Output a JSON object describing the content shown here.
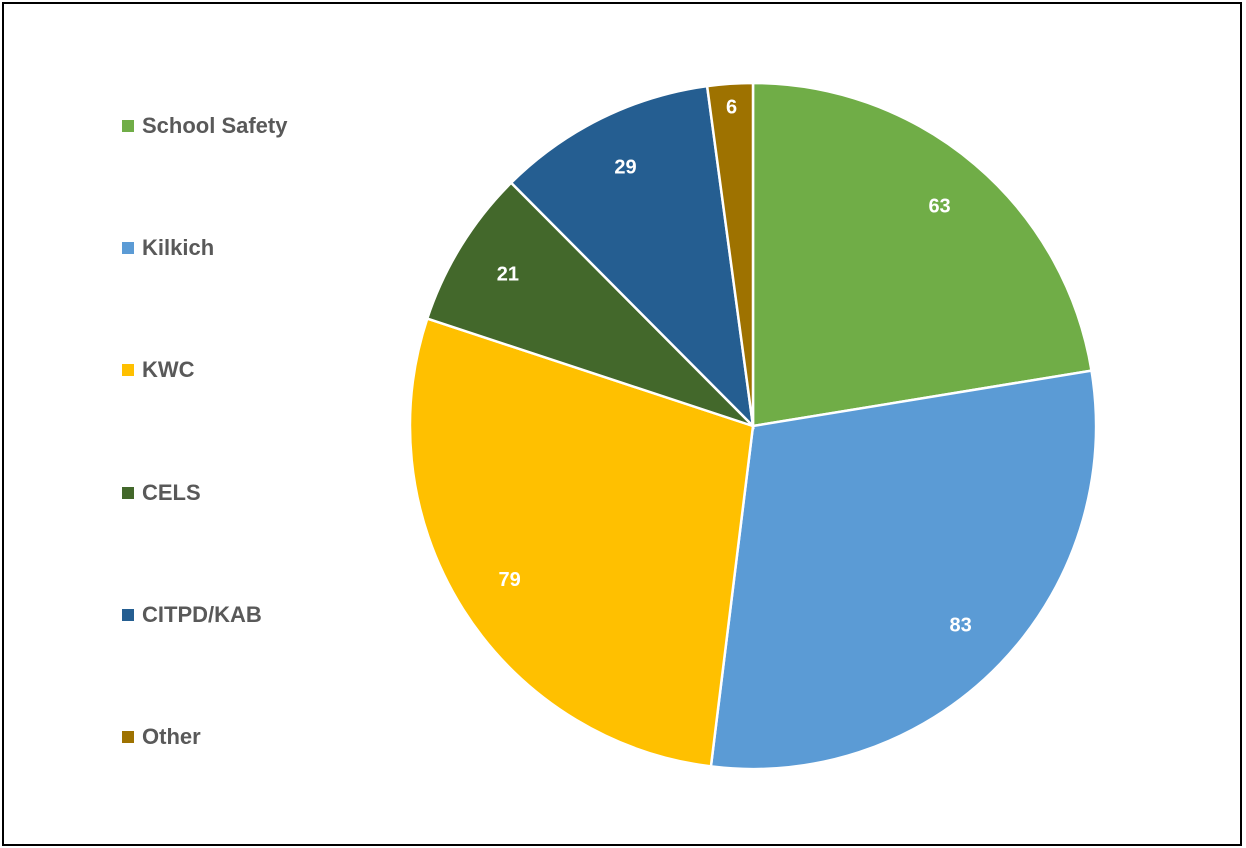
{
  "chart_data": {
    "type": "pie",
    "title": "",
    "legend_position": "left",
    "categories": [
      "School Safety",
      "Kilkich",
      "KWC",
      "CELS",
      "CITPD/KAB",
      "Other"
    ],
    "values": [
      63,
      83,
      79,
      21,
      29,
      6
    ],
    "colors": [
      "#70AD47",
      "#5B9BD5",
      "#FFC000",
      "#43682B",
      "#255E91",
      "#9E7200"
    ],
    "label_color": "#FFFFFF"
  },
  "legend": {
    "items": [
      {
        "label": "School Safety",
        "color": "#70AD47"
      },
      {
        "label": "Kilkich",
        "color": "#5B9BD5"
      },
      {
        "label": "KWC",
        "color": "#FFC000"
      },
      {
        "label": "CELS",
        "color": "#43682B"
      },
      {
        "label": "CITPD/KAB",
        "color": "#255E91"
      },
      {
        "label": "Other",
        "color": "#9E7200"
      }
    ]
  }
}
